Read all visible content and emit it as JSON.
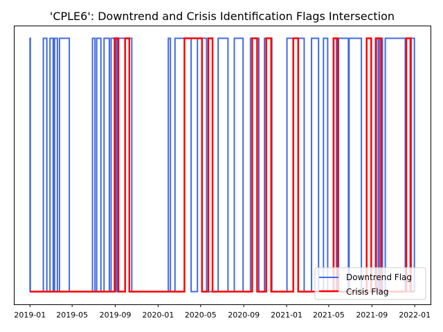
{
  "chart_data": {
    "type": "line",
    "title": "'CPLE6': Downtrend and Crisis Identification Flags Intersection",
    "xlabel": "",
    "ylabel": "",
    "grid": false,
    "legend_position": "lower-right",
    "x_tick_labels": [
      "2019-01",
      "2019-05",
      "2019-09",
      "2020-01",
      "2020-05",
      "2020-09",
      "2021-01",
      "2021-05",
      "2021-09",
      "2022-01"
    ],
    "x_tick_dates": [
      "2019-01-01",
      "2019-05-01",
      "2019-09-01",
      "2020-01-01",
      "2020-05-01",
      "2020-09-01",
      "2021-01-01",
      "2021-05-01",
      "2021-09-01",
      "2022-01-01"
    ],
    "xlim": [
      "2018-11-16",
      "2022-02-15"
    ],
    "ylim": [
      -0.05,
      1.05
    ],
    "series": [
      {
        "name": "Downtrend Flag",
        "color": "#4169e1",
        "intervals": [
          [
            "2019-01-01",
            "2019-01-02"
          ],
          [
            "2019-02-08",
            "2019-02-18"
          ],
          [
            "2019-02-27",
            "2019-03-08"
          ],
          [
            "2019-03-12",
            "2019-03-20"
          ],
          [
            "2019-03-26",
            "2019-04-23"
          ],
          [
            "2019-06-28",
            "2019-07-05"
          ],
          [
            "2019-07-10",
            "2019-07-22"
          ],
          [
            "2019-07-31",
            "2019-08-15"
          ],
          [
            "2019-08-20",
            "2019-09-02"
          ],
          [
            "2019-09-06",
            "2019-10-18"
          ],
          [
            "2020-01-30",
            "2020-02-05"
          ],
          [
            "2020-02-18",
            "2020-04-04"
          ],
          [
            "2020-04-22",
            "2020-05-18"
          ],
          [
            "2020-06-20",
            "2020-07-18"
          ],
          [
            "2020-08-05",
            "2020-08-30"
          ],
          [
            "2020-09-20",
            "2020-10-14"
          ],
          [
            "2020-10-30",
            "2020-11-20"
          ],
          [
            "2021-01-02",
            "2021-02-20"
          ],
          [
            "2021-03-13",
            "2021-04-02"
          ],
          [
            "2021-04-16",
            "2021-04-28"
          ],
          [
            "2021-05-14",
            "2021-05-23"
          ],
          [
            "2021-05-29",
            "2021-06-26"
          ],
          [
            "2021-06-28",
            "2021-08-02"
          ],
          [
            "2021-09-11",
            "2021-09-19"
          ],
          [
            "2021-09-22",
            "2021-10-01"
          ],
          [
            "2021-10-09",
            "2021-12-05"
          ],
          [
            "2021-12-19",
            "2021-12-31"
          ]
        ]
      },
      {
        "name": "Crisis Flag",
        "color": "#ff0000",
        "intervals": [
          [
            "2019-08-30",
            "2019-09-10"
          ],
          [
            "2019-09-29",
            "2019-10-11"
          ],
          [
            "2020-03-16",
            "2020-05-05"
          ],
          [
            "2020-05-23",
            "2020-06-04"
          ],
          [
            "2020-09-25",
            "2020-10-09"
          ],
          [
            "2020-11-04",
            "2020-11-18"
          ],
          [
            "2021-01-20",
            "2021-02-03"
          ],
          [
            "2021-05-15",
            "2021-05-27"
          ],
          [
            "2021-08-17",
            "2021-08-30"
          ],
          [
            "2021-09-13",
            "2021-09-27"
          ],
          [
            "2021-12-08",
            "2021-12-21"
          ]
        ]
      }
    ]
  }
}
